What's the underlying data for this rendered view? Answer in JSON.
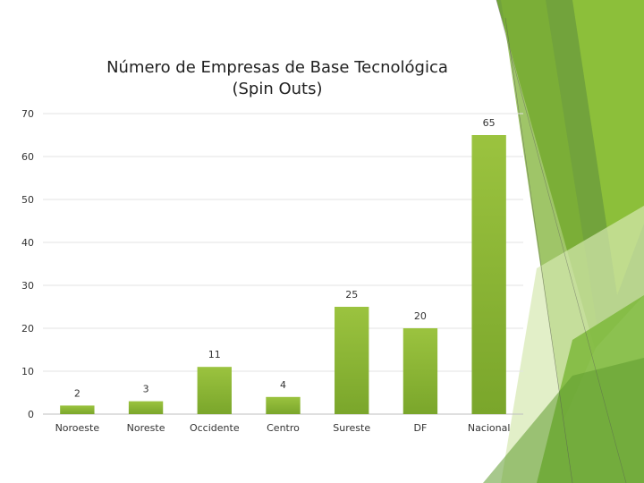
{
  "slide": {
    "accent_colors": [
      "#9bc33f",
      "#6fa12a",
      "#5a8f2a",
      "#c9df9a"
    ]
  },
  "chart_data": {
    "type": "bar",
    "title_line1": "Número de Empresas de Base Tecnológica",
    "title_line2": "(Spin Outs)",
    "categories": [
      "Noroeste",
      "Noreste",
      "Occidente",
      "Centro",
      "Sureste",
      "DF",
      "Nacional"
    ],
    "values": [
      2,
      3,
      11,
      4,
      25,
      20,
      65
    ],
    "data_labels": [
      "2",
      "3",
      "11",
      "4",
      "25",
      "20",
      "65"
    ],
    "ylim": [
      0,
      70
    ],
    "yticks": [
      "0",
      "10",
      "20",
      "30",
      "40",
      "50",
      "60",
      "70"
    ],
    "grid": true,
    "legend": "none",
    "bar_color_top": "#9bc33f",
    "bar_color_bottom": "#7aa62b"
  }
}
